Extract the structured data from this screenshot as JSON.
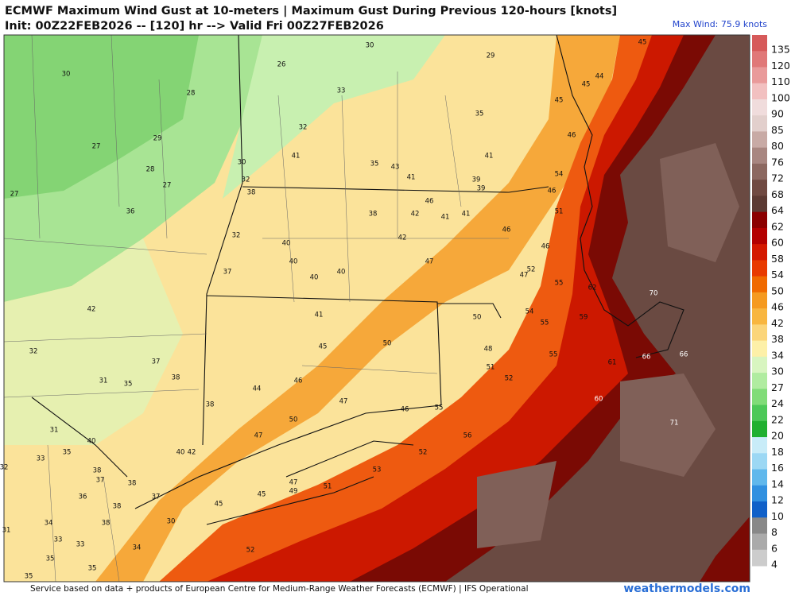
{
  "header": {
    "title": "ECMWF Maximum Wind Gust at 10-meters | Maximum Gust During Previous 120-hours [knots]",
    "subtitle": "Init: 00Z22FEB2026 -- [120] hr --> Valid Fri 00Z27FEB2026",
    "max_wind": "Max Wind: 75.9 knots"
  },
  "colorbar": {
    "levels": [
      135,
      120,
      110,
      100,
      90,
      85,
      80,
      76,
      72,
      68,
      64,
      62,
      60,
      58,
      54,
      50,
      46,
      42,
      38,
      34,
      30,
      27,
      24,
      22,
      20,
      18,
      16,
      14,
      12,
      10,
      8,
      6,
      4
    ],
    "colors": [
      "#d65a5a",
      "#e07878",
      "#e99a9a",
      "#f2c0c0",
      "#f0dcdc",
      "#e2cfcc",
      "#c8aaa5",
      "#a88680",
      "#8c6860",
      "#704a42",
      "#5c3a33",
      "#8b0000",
      "#b30000",
      "#d41800",
      "#e83a00",
      "#f06a00",
      "#f59a20",
      "#f8b640",
      "#fbd57a",
      "#fdf0a8",
      "#d8f5c0",
      "#b0eca0",
      "#80dc78",
      "#4cc858",
      "#20b030",
      "#c8ecf8",
      "#9cd8f4",
      "#60b8ec",
      "#3090e0",
      "#1060c8",
      "#888888",
      "#aaaaaa",
      "#cccccc"
    ]
  },
  "station_values": [
    30,
    26,
    30,
    29,
    45,
    28,
    33,
    45,
    44,
    45,
    35,
    27,
    29,
    32,
    46,
    41,
    35,
    43,
    41,
    39,
    39,
    41,
    54,
    46,
    28,
    30,
    27,
    32,
    27,
    38,
    36,
    46,
    42,
    41,
    41,
    38,
    51,
    46,
    32,
    42,
    40,
    40,
    40,
    40,
    47,
    46,
    47,
    52,
    37,
    55,
    62,
    70,
    42,
    41,
    50,
    54,
    55,
    59,
    45,
    50,
    48,
    55,
    66,
    66,
    61,
    37,
    32,
    51,
    52,
    38,
    31,
    35,
    46,
    44,
    47,
    38,
    46,
    55,
    60,
    71,
    50,
    31,
    40,
    47,
    56,
    40,
    42,
    33,
    35,
    52,
    38,
    37,
    38,
    32,
    53,
    47,
    51,
    49,
    45,
    36,
    37,
    45,
    38,
    38,
    30,
    34,
    31,
    33,
    33,
    34,
    52,
    35,
    35,
    35
  ],
  "footer": {
    "credit": "Service based on data + products of European Centre for Medium-Range Weather Forecasts (ECMWF) | IFS Operational",
    "site": "weathermodels.com"
  }
}
